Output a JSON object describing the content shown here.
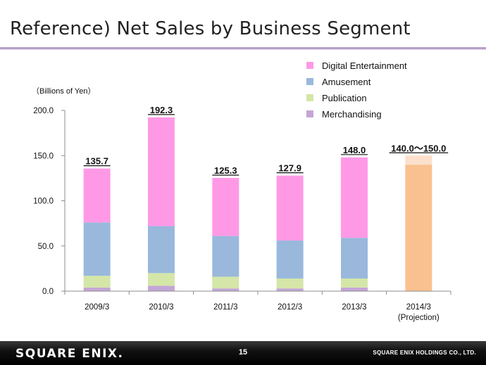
{
  "slide": {
    "title": "Reference) Net Sales by Business Segment",
    "page_number": "15",
    "company": "SQUARE ENIX HOLDINGS CO., LTD.",
    "logo_text": "SQUARE ENIX."
  },
  "chart_data": {
    "type": "bar",
    "stacked": true,
    "unit_label": "（Billions of Yen）",
    "categories": [
      "2009/3",
      "2010/3",
      "2011/3",
      "2012/3",
      "2013/3",
      "2014/3 (Projection)"
    ],
    "category_lines": [
      [
        "2009/3"
      ],
      [
        "2010/3"
      ],
      [
        "2011/3"
      ],
      [
        "2012/3"
      ],
      [
        "2013/3"
      ],
      [
        "2014/3",
        "(Projection)"
      ]
    ],
    "series": [
      {
        "name": "Merchandising",
        "color": "#c4a6d6",
        "values": [
          4,
          6,
          3,
          3,
          4,
          null
        ]
      },
      {
        "name": "Publication",
        "color": "#d4e6a8",
        "values": [
          13,
          14,
          13,
          11,
          10,
          null
        ]
      },
      {
        "name": "Amusement",
        "color": "#99b8dc",
        "values": [
          59,
          52,
          45,
          42,
          45,
          null
        ]
      },
      {
        "name": "Digital Entertainment",
        "color": "#ff99e6",
        "values": [
          59.7,
          120.3,
          64.3,
          71.9,
          89,
          null
        ]
      }
    ],
    "legend_order": [
      "Digital Entertainment",
      "Amusement",
      "Publication",
      "Merchandising"
    ],
    "totals": [
      "135.7",
      "192.3",
      "125.3",
      "127.9",
      "148.0",
      "140.0～150.0"
    ],
    "projection": {
      "low": 140.0,
      "high": 150.0,
      "color_low": "#f9c18f",
      "color_high": "#fce0cc"
    },
    "yticks": [
      "0.0",
      "50.0",
      "100.0",
      "150.0",
      "200.0"
    ],
    "ylim": [
      0,
      200
    ],
    "legend_position": "top-right",
    "grid": false
  }
}
